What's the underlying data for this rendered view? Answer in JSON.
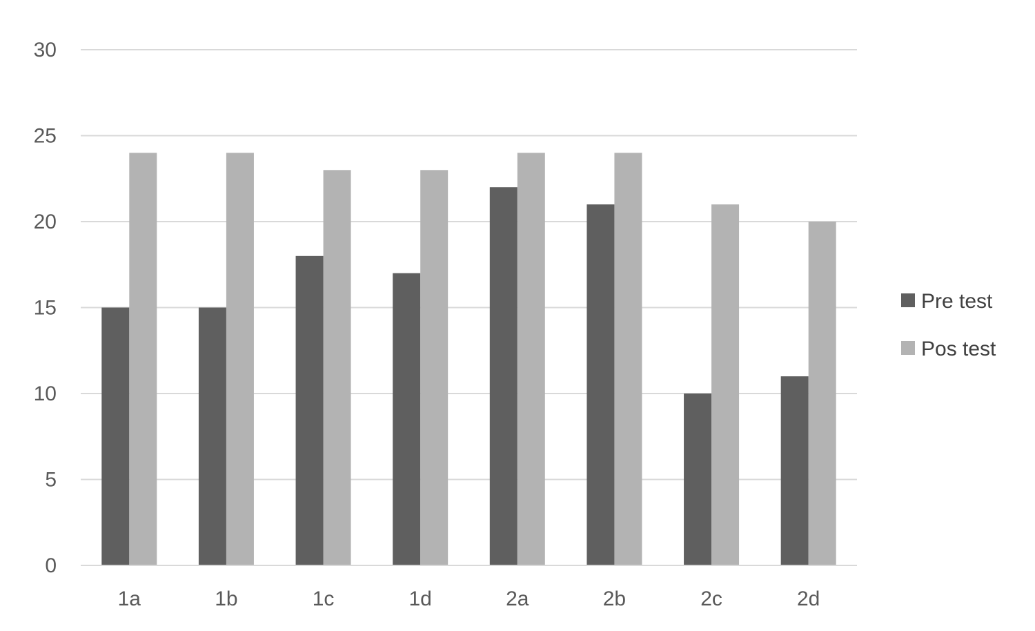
{
  "chart_data": {
    "type": "bar",
    "title": "",
    "xlabel": "",
    "ylabel": "",
    "categories": [
      "1a",
      "1b",
      "1c",
      "1d",
      "2a",
      "2b",
      "2c",
      "2d"
    ],
    "series": [
      {
        "name": "Pre test",
        "color": "#5f5f5f",
        "values": [
          15,
          15,
          18,
          17,
          22,
          21,
          10,
          11
        ]
      },
      {
        "name": "Pos test",
        "color": "#b3b3b3",
        "values": [
          24,
          24,
          23,
          23,
          24,
          24,
          21,
          20
        ]
      }
    ],
    "ylim": [
      0,
      30
    ],
    "yticks": [
      0,
      5,
      10,
      15,
      20,
      25,
      30
    ],
    "grid": true,
    "legend_position": "right"
  }
}
